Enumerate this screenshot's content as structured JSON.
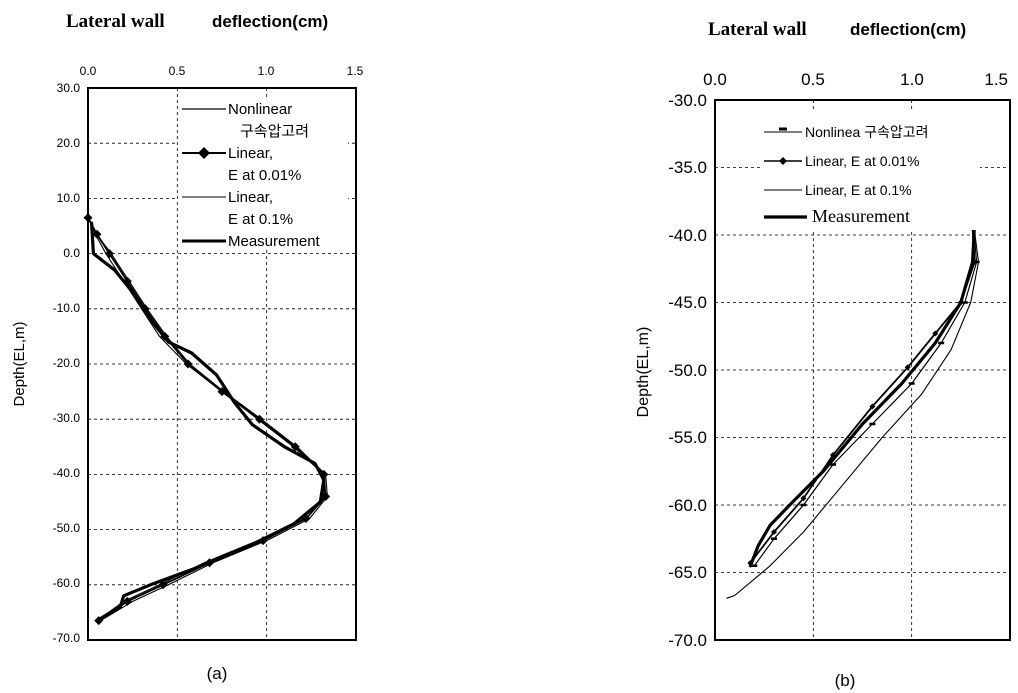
{
  "chart_data": [
    {
      "id": "a",
      "type": "line",
      "title": "Lateral wall",
      "subtitle": "deflection(cm)",
      "xlabel": "",
      "ylabel": "Depth(EL,m)",
      "panel_label": "(a)",
      "xlim": [
        0,
        1.5
      ],
      "ylim": [
        -70,
        30
      ],
      "x_ticks": [
        "0.0",
        "0.5",
        "1.0",
        "1.5"
      ],
      "y_ticks": [
        "30.0",
        "20.0",
        "10.0",
        "0.0",
        "-10.0",
        "-20.0",
        "-30.0",
        "-40.0",
        "-50.0",
        "-60.0",
        "-70.0"
      ],
      "grid": true,
      "legend_position": "top-right",
      "legend": [
        {
          "key": "nonlinear",
          "lines": [
            "Nonlinear",
            "구속압고려"
          ]
        },
        {
          "key": "linear001",
          "lines": [
            "Linear,",
            "E at 0.01%"
          ]
        },
        {
          "key": "linear01",
          "lines": [
            "Linear,",
            "E at 0.1%"
          ]
        },
        {
          "key": "measurement",
          "lines": [
            "Measurement"
          ]
        }
      ],
      "series": [
        {
          "name": "Nonlinear 구속압고려",
          "style": "thin",
          "points": [
            [
              0.0,
              6.5
            ],
            [
              0.05,
              3
            ],
            [
              0.1,
              0
            ],
            [
              0.2,
              -5
            ],
            [
              0.3,
              -10
            ],
            [
              0.4,
              -15
            ],
            [
              0.55,
              -20
            ],
            [
              0.75,
              -25
            ],
            [
              0.95,
              -30
            ],
            [
              1.15,
              -35
            ],
            [
              1.32,
              -40
            ],
            [
              1.32,
              -44
            ],
            [
              1.2,
              -48
            ],
            [
              0.95,
              -52
            ],
            [
              0.65,
              -56
            ],
            [
              0.4,
              -60
            ],
            [
              0.2,
              -63
            ],
            [
              0.05,
              -66.5
            ]
          ]
        },
        {
          "name": "Linear, E at 0.01%",
          "style": "diamond",
          "points": [
            [
              0.0,
              6.5
            ],
            [
              0.05,
              3.5
            ],
            [
              0.12,
              0
            ],
            [
              0.22,
              -5
            ],
            [
              0.32,
              -10
            ],
            [
              0.43,
              -15
            ],
            [
              0.56,
              -20
            ],
            [
              0.75,
              -25
            ],
            [
              0.96,
              -30
            ],
            [
              1.16,
              -35
            ],
            [
              1.32,
              -40
            ],
            [
              1.33,
              -44
            ],
            [
              1.22,
              -48
            ],
            [
              0.98,
              -52
            ],
            [
              0.68,
              -56
            ],
            [
              0.42,
              -60
            ],
            [
              0.22,
              -63
            ],
            [
              0.06,
              -66.5
            ]
          ]
        },
        {
          "name": "Linear, E at 0.1%",
          "style": "thin",
          "points": [
            [
              0.0,
              6.5
            ],
            [
              0.06,
              3
            ],
            [
              0.13,
              0
            ],
            [
              0.23,
              -5
            ],
            [
              0.33,
              -10
            ],
            [
              0.44,
              -15
            ],
            [
              0.57,
              -20
            ],
            [
              0.76,
              -25
            ],
            [
              0.97,
              -30
            ],
            [
              1.17,
              -35
            ],
            [
              1.33,
              -40
            ],
            [
              1.34,
              -44
            ],
            [
              1.24,
              -48
            ],
            [
              1.0,
              -52
            ],
            [
              0.7,
              -56
            ],
            [
              0.45,
              -60
            ],
            [
              0.25,
              -63
            ],
            [
              0.07,
              -66.5
            ]
          ]
        },
        {
          "name": "Measurement",
          "style": "thick",
          "points": [
            [
              0.02,
              5.5
            ],
            [
              0.03,
              0
            ],
            [
              0.15,
              -3
            ],
            [
              0.25,
              -7
            ],
            [
              0.35,
              -12
            ],
            [
              0.45,
              -16
            ],
            [
              0.58,
              -18
            ],
            [
              0.72,
              -22
            ],
            [
              0.82,
              -27
            ],
            [
              0.92,
              -31
            ],
            [
              1.1,
              -35
            ],
            [
              1.27,
              -38
            ],
            [
              1.32,
              -41
            ],
            [
              1.3,
              -45
            ],
            [
              1.15,
              -49
            ],
            [
              0.9,
              -53
            ],
            [
              0.6,
              -57
            ],
            [
              0.35,
              -60
            ],
            [
              0.2,
              -62
            ],
            [
              0.18,
              -64
            ],
            [
              0.1,
              -65.5
            ],
            [
              0.05,
              -66.5
            ]
          ]
        }
      ]
    },
    {
      "id": "b",
      "type": "line",
      "title": "Lateral wall",
      "subtitle": "deflection(cm)",
      "xlabel": "",
      "ylabel": "Depth(EL,m)",
      "panel_label": "(b)",
      "xlim": [
        0,
        1.5
      ],
      "ylim": [
        -70,
        -30
      ],
      "x_ticks": [
        "0.0",
        "0.5",
        "1.0",
        "1.5"
      ],
      "y_ticks": [
        "-30.0",
        "-35.0",
        "-40.0",
        "-45.0",
        "-50.0",
        "-55.0",
        "-60.0",
        "-65.0",
        "-70.0"
      ],
      "grid": true,
      "legend_position": "top-right",
      "legend": [
        {
          "key": "nonlinear",
          "lines": [
            "Nonlinea 구속압고려"
          ]
        },
        {
          "key": "linear001",
          "lines": [
            "Linear, E at 0.01%"
          ]
        },
        {
          "key": "linear01",
          "lines": [
            "Linear, E at 0.1%"
          ]
        },
        {
          "key": "measurement",
          "lines": [
            "Measurement"
          ]
        }
      ],
      "series": [
        {
          "name": "Nonlinea 구속압고려",
          "style": "dash-marker",
          "points": [
            [
              1.3,
              -37
            ],
            [
              1.33,
              -42
            ],
            [
              1.27,
              -45
            ],
            [
              1.15,
              -48
            ],
            [
              1.0,
              -51
            ],
            [
              0.8,
              -54
            ],
            [
              0.6,
              -57
            ],
            [
              0.45,
              -60
            ],
            [
              0.3,
              -62.5
            ],
            [
              0.2,
              -64.5
            ]
          ]
        },
        {
          "name": "Linear, E at 0.01%",
          "style": "diamond",
          "points": [
            [
              1.3,
              -37.2
            ],
            [
              1.32,
              -42
            ],
            [
              1.25,
              -45
            ],
            [
              1.12,
              -47.3
            ],
            [
              0.98,
              -49.8
            ],
            [
              0.8,
              -52.7
            ],
            [
              0.6,
              -56.3
            ],
            [
              0.45,
              -59.5
            ],
            [
              0.3,
              -62
            ],
            [
              0.18,
              -64.3
            ]
          ]
        },
        {
          "name": "Linear, E at 0.1%",
          "style": "thin",
          "points": [
            [
              1.3,
              -37.5
            ],
            [
              1.34,
              -42
            ],
            [
              1.3,
              -45
            ],
            [
              1.2,
              -48.5
            ],
            [
              1.05,
              -51.8
            ],
            [
              0.85,
              -55
            ],
            [
              0.65,
              -58.5
            ],
            [
              0.45,
              -62
            ],
            [
              0.28,
              -64.5
            ],
            [
              0.1,
              -66.7
            ],
            [
              0.06,
              -66.9
            ]
          ]
        },
        {
          "name": "Measurement",
          "style": "thick",
          "points": [
            [
              1.3,
              -37
            ],
            [
              1.32,
              -39
            ],
            [
              1.31,
              -42
            ],
            [
              1.25,
              -45
            ],
            [
              1.12,
              -48
            ],
            [
              0.95,
              -51
            ],
            [
              0.75,
              -54
            ],
            [
              0.55,
              -57.5
            ],
            [
              0.38,
              -60
            ],
            [
              0.28,
              -61.5
            ],
            [
              0.22,
              -63
            ],
            [
              0.18,
              -64.5
            ]
          ]
        }
      ]
    }
  ]
}
